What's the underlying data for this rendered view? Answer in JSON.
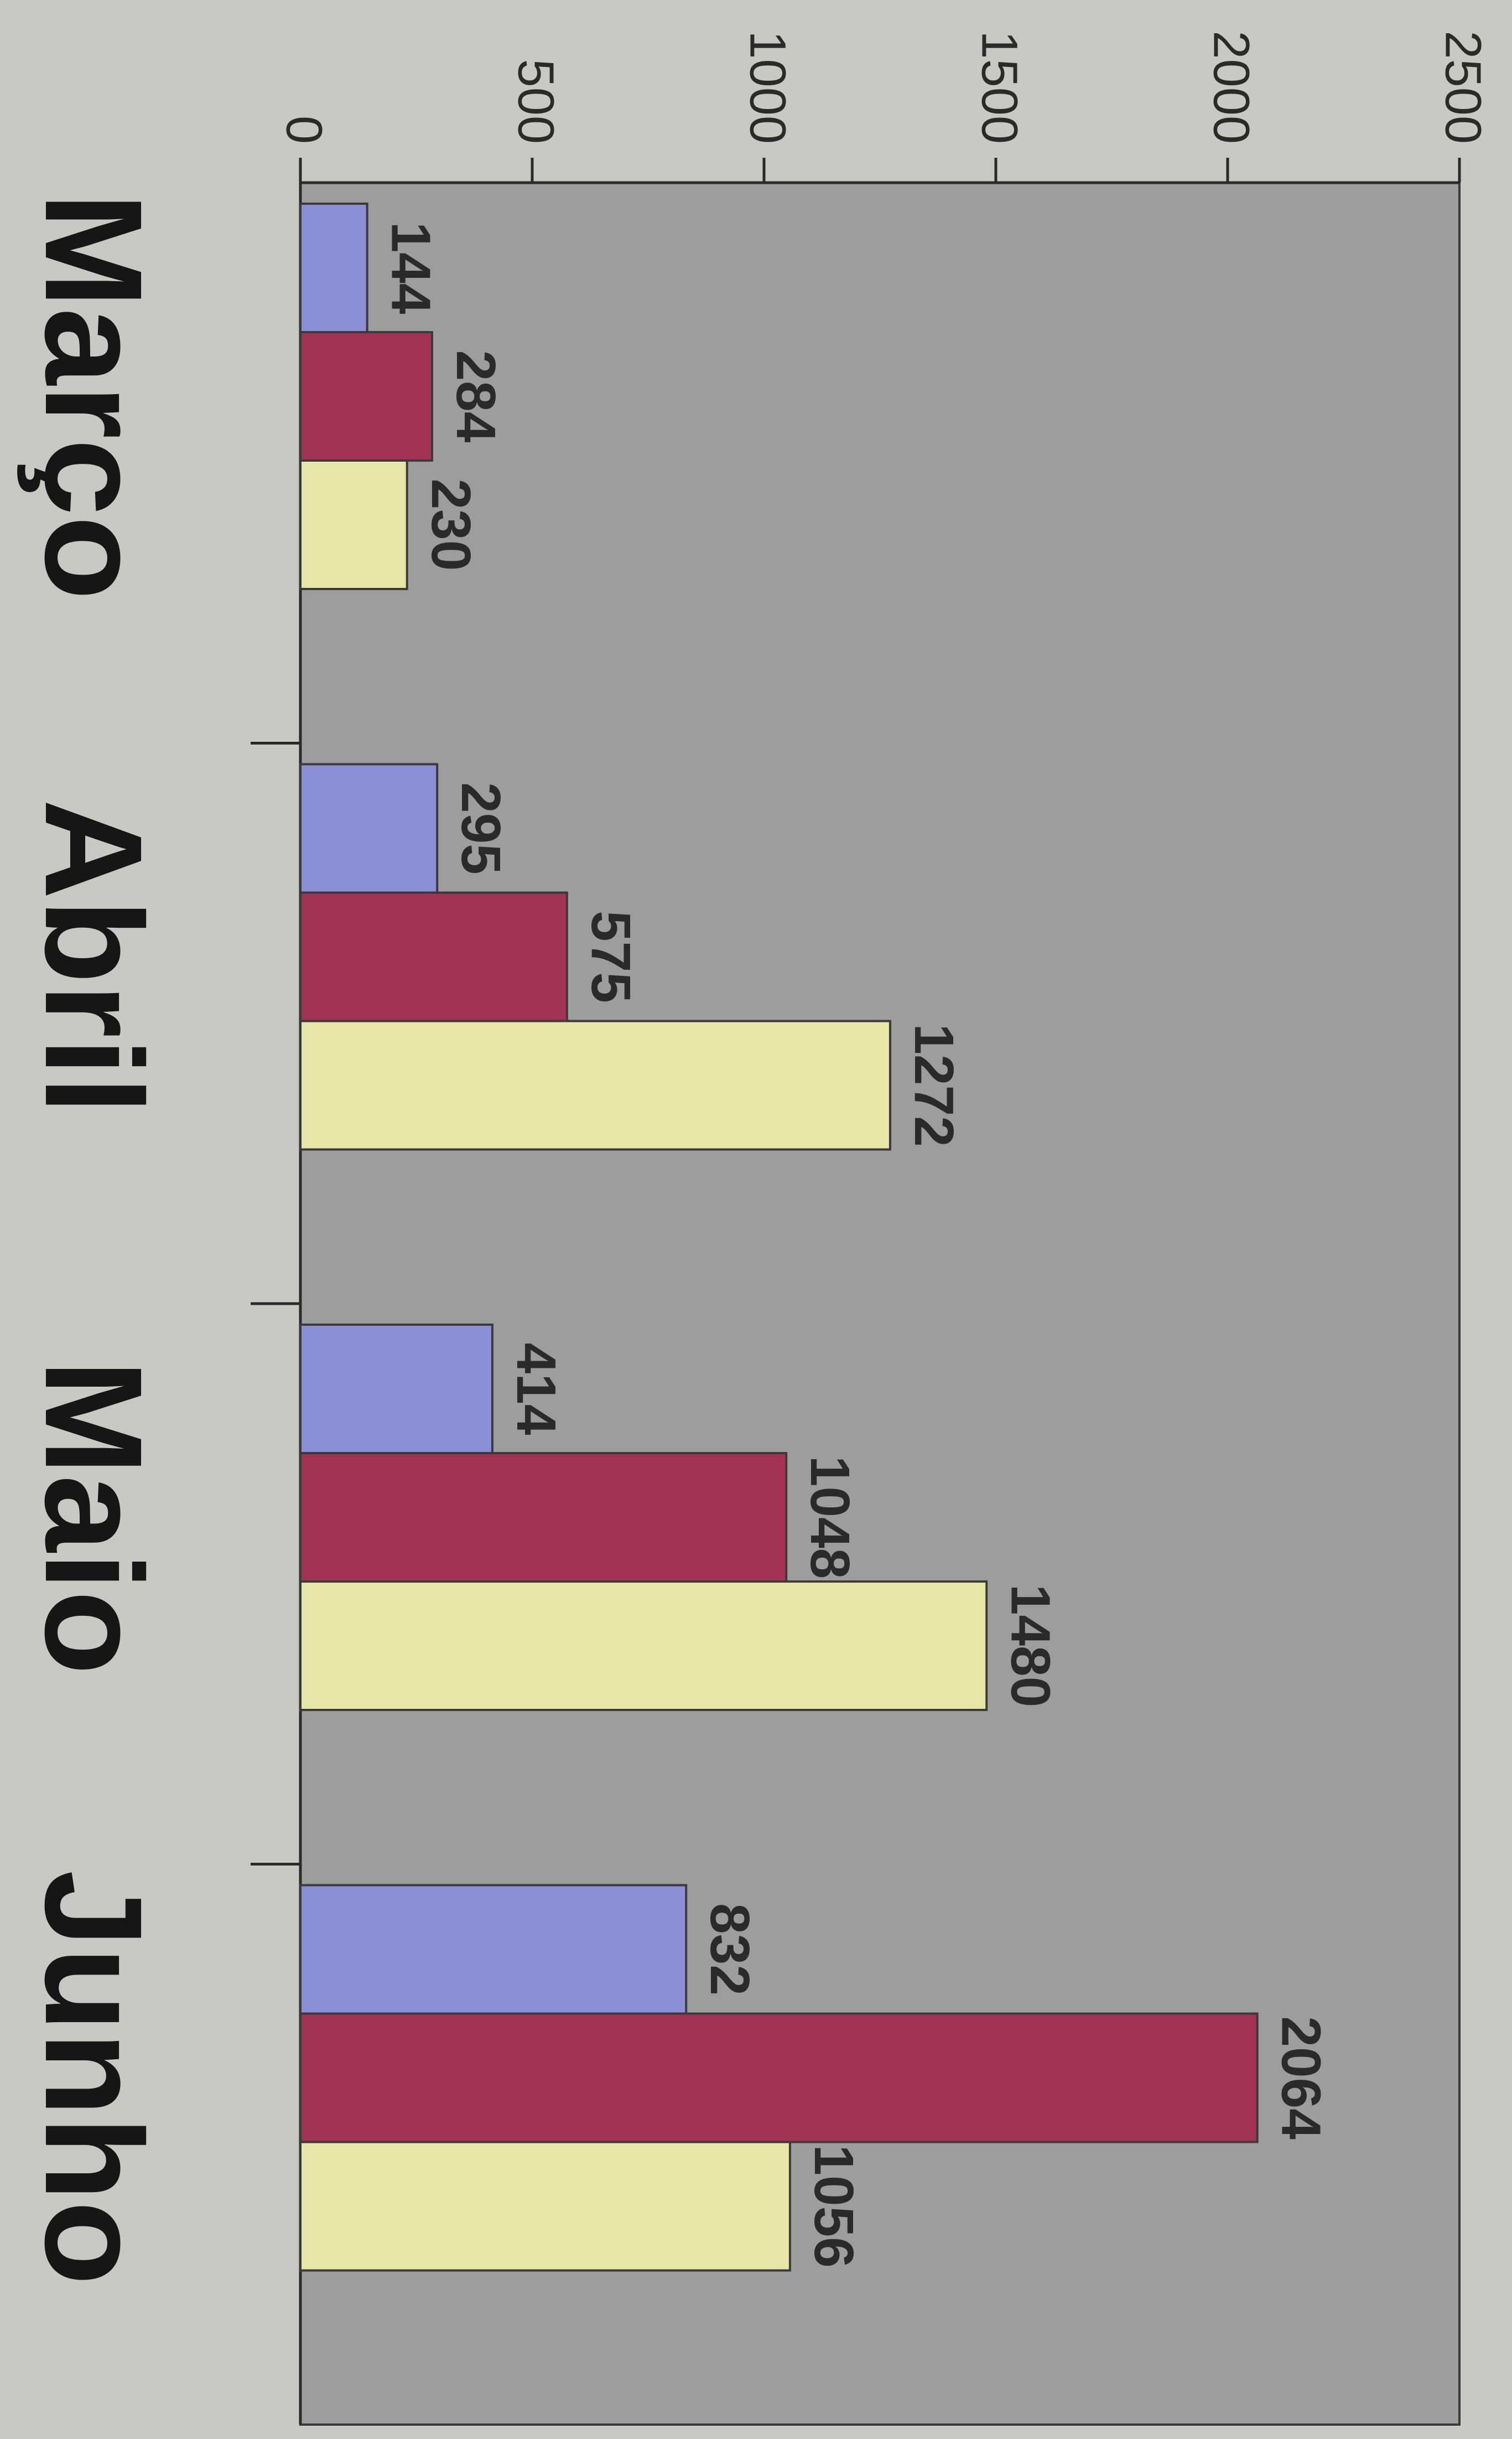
{
  "chart_data": {
    "type": "bar",
    "orientation": "horizontal",
    "categories": [
      "Março",
      "Abril",
      "Maio",
      "Junho"
    ],
    "series": [
      {
        "values": [
          144,
          295,
          414,
          832
        ],
        "color": "#8b8fd6"
      },
      {
        "values": [
          284,
          575,
          1048,
          2064
        ],
        "color": "#a33354"
      },
      {
        "values": [
          230,
          1272,
          1480,
          1056
        ],
        "color": "#e8e6a6"
      }
    ],
    "value_axis": {
      "min": 0,
      "max": 2500,
      "ticks": [
        "0",
        "500",
        "1000",
        "1500",
        "2000",
        "2500"
      ]
    },
    "grid": false,
    "plot_background": "#9d9d9d",
    "page_background": "#c8c9c2"
  }
}
